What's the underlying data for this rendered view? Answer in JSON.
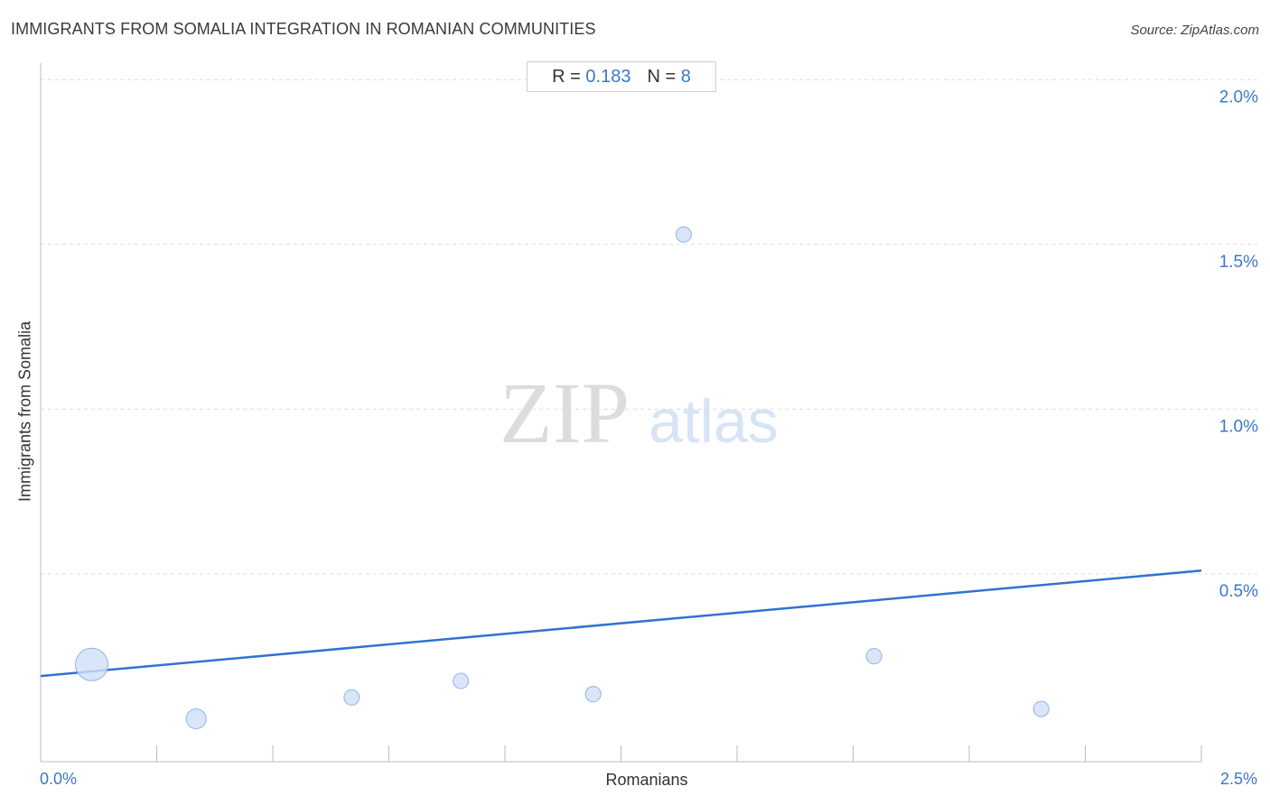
{
  "header": {
    "title": "IMMIGRANTS FROM SOMALIA INTEGRATION IN ROMANIAN COMMUNITIES",
    "source": "Source: ZipAtlas.com"
  },
  "stats": {
    "r_label": "R =",
    "r_value": "0.183",
    "n_label": "N =",
    "n_value": "8"
  },
  "watermark": {
    "zip": "ZIP",
    "atlas": "atlas"
  },
  "colors": {
    "accent": "#3b78c9",
    "point_fill": "#cfe0f7",
    "point_stroke": "#8fb3e3",
    "trend": "#2f73d0",
    "grid": "#dddddd"
  },
  "chart_data": {
    "type": "scatter",
    "title": "IMMIGRANTS FROM SOMALIA INTEGRATION IN ROMANIAN COMMUNITIES",
    "xlabel": "Romanians",
    "ylabel": "Immigrants from Somalia",
    "xlim": [
      0,
      2.5
    ],
    "ylim": [
      -0.07,
      2.05
    ],
    "x_tick_labels": [
      "0.0%",
      "2.5%"
    ],
    "y_ticks": [
      {
        "value": 0.5,
        "label": "0.5%"
      },
      {
        "value": 1.0,
        "label": "1.0%"
      },
      {
        "value": 1.5,
        "label": "1.5%"
      },
      {
        "value": 2.0,
        "label": "2.0%"
      }
    ],
    "x_minor_ticks": [
      0.25,
      0.5,
      0.75,
      1.0,
      1.25,
      1.5,
      1.75,
      2.0,
      2.25,
      2.5
    ],
    "grid": true,
    "points": [
      {
        "x": 0.11,
        "y": 0.225,
        "size": "large"
      },
      {
        "x": 0.335,
        "y": 0.06,
        "size": "medium"
      },
      {
        "x": 0.67,
        "y": 0.125,
        "size": "small"
      },
      {
        "x": 0.905,
        "y": 0.175,
        "size": "small"
      },
      {
        "x": 1.19,
        "y": 0.135,
        "size": "small"
      },
      {
        "x": 1.385,
        "y": 1.53,
        "size": "small"
      },
      {
        "x": 1.795,
        "y": 0.25,
        "size": "small"
      },
      {
        "x": 2.155,
        "y": 0.09,
        "size": "small"
      }
    ],
    "trendline": {
      "x": [
        0.0,
        2.5
      ],
      "y": [
        0.19,
        0.51
      ]
    }
  }
}
